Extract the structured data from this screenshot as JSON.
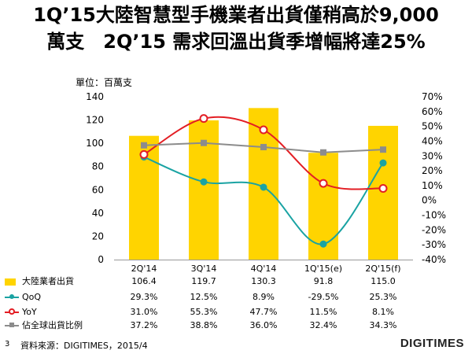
{
  "slide": {
    "title_line1": "1Q’15大陸智慧型手機業者出貨僅稍高於9,000",
    "title_line2": "萬支　2Q’15 需求回溫出貨季增幅將達25%",
    "unit_label": "單位：百萬支",
    "slide_number": "3",
    "source": "資料來源：DIGITIMES，2015/4",
    "logo_text": "DIGITIMES"
  },
  "colors": {
    "bar": "#FFD400",
    "qoq": "#1AA3A3",
    "yoy": "#E31E24",
    "share": "#8C8C8C"
  },
  "chart_data": {
    "type": "bar",
    "categories": [
      "2Q'14",
      "3Q'14",
      "4Q'14",
      "1Q'15(e)",
      "2Q'15(f)"
    ],
    "y_left": {
      "min": 0,
      "max": 140,
      "ticks": [
        "0",
        "20",
        "40",
        "60",
        "80",
        "100",
        "120",
        "140"
      ]
    },
    "y_right": {
      "min": -40,
      "max": 70,
      "ticks": [
        "-40%",
        "-30%",
        "-20%",
        "-10%",
        "0%",
        "10%",
        "20%",
        "30%",
        "40%",
        "50%",
        "60%",
        "70%"
      ]
    },
    "series": [
      {
        "name": "大陸業者出貨",
        "kind": "bar",
        "axis": "left",
        "values": [
          106.4,
          119.7,
          130.3,
          91.8,
          115.0
        ],
        "labels": [
          "106.4",
          "119.7",
          "130.3",
          "91.8",
          "115.0"
        ]
      },
      {
        "name": "QoQ",
        "kind": "line",
        "marker": "circle",
        "axis": "right",
        "values": [
          29.3,
          12.5,
          8.9,
          -29.5,
          25.3
        ],
        "labels": [
          "29.3%",
          "12.5%",
          "8.9%",
          "-29.5%",
          "25.3%"
        ]
      },
      {
        "name": "YoY",
        "kind": "line",
        "marker": "circle-open",
        "axis": "right",
        "values": [
          31.0,
          55.3,
          47.7,
          11.5,
          8.1
        ],
        "labels": [
          "31.0%",
          "55.3%",
          "47.7%",
          "11.5%",
          "8.1%"
        ]
      },
      {
        "name": "佔全球出貨比例",
        "kind": "line",
        "marker": "square",
        "axis": "right",
        "values": [
          37.2,
          38.8,
          36.0,
          32.4,
          34.3
        ],
        "labels": [
          "37.2%",
          "38.8%",
          "36.0%",
          "32.4%",
          "34.3%"
        ]
      }
    ]
  }
}
